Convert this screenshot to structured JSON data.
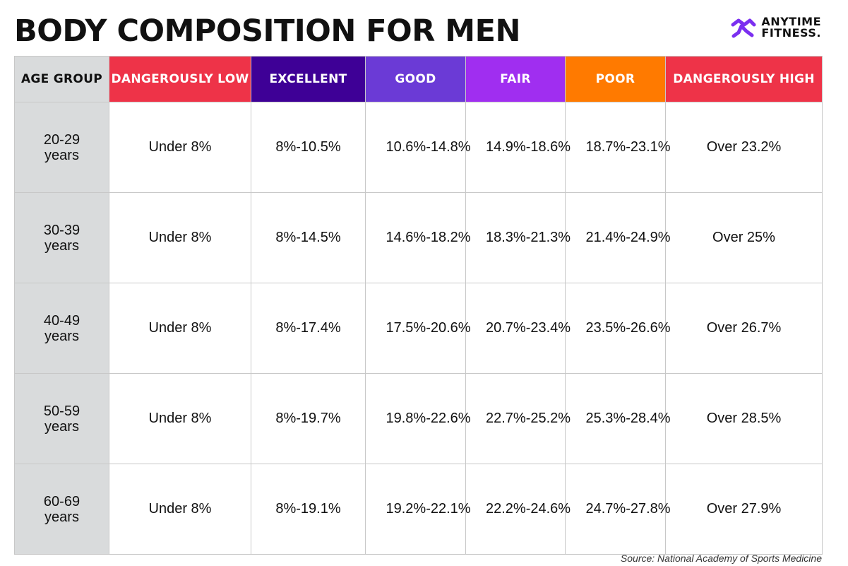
{
  "title": "BODY COMPOSITION FOR MEN",
  "logo": {
    "line1": "ANYTIME",
    "line2": "FITNESS.",
    "icon": "running-man-icon",
    "color": "#7b2ff0"
  },
  "table": {
    "columns": [
      {
        "label": "AGE GROUP",
        "color": "#d9dbdc"
      },
      {
        "label": "DANGEROUSLY LOW",
        "color": "#ee3348"
      },
      {
        "label": "EXCELLENT",
        "color": "#3e0096"
      },
      {
        "label": "GOOD",
        "color": "#6b3ad6"
      },
      {
        "label": "FAIR",
        "color": "#a02ef0"
      },
      {
        "label": "POOR",
        "color": "#ff7a00"
      },
      {
        "label": "DANGEROUSLY HIGH",
        "color": "#ee3348"
      }
    ],
    "rows": [
      {
        "age": "20-29 years",
        "cells": [
          "Under 8%",
          "8%-10.5%",
          "10.6%-14.8%",
          "14.9%-18.6%",
          "18.7%-23.1%",
          "Over 23.2%"
        ]
      },
      {
        "age": "30-39 years",
        "cells": [
          "Under 8%",
          "8%-14.5%",
          "14.6%-18.2%",
          "18.3%-21.3%",
          "21.4%-24.9%",
          "Over 25%"
        ]
      },
      {
        "age": "40-49 years",
        "cells": [
          "Under 8%",
          "8%-17.4%",
          "17.5%-20.6%",
          "20.7%-23.4%",
          "23.5%-26.6%",
          "Over 26.7%"
        ]
      },
      {
        "age": "50-59 years",
        "cells": [
          "Under 8%",
          "8%-19.7%",
          "19.8%-22.6%",
          "22.7%-25.2%",
          "25.3%-28.4%",
          "Over 28.5%"
        ]
      },
      {
        "age": "60-69 years",
        "cells": [
          "Under 8%",
          "8%-19.1%",
          "19.2%-22.1%",
          "22.2%-24.6%",
          "24.7%-27.8%",
          "Over 27.9%"
        ]
      }
    ]
  },
  "source": "Source: National Academy of Sports Medicine"
}
